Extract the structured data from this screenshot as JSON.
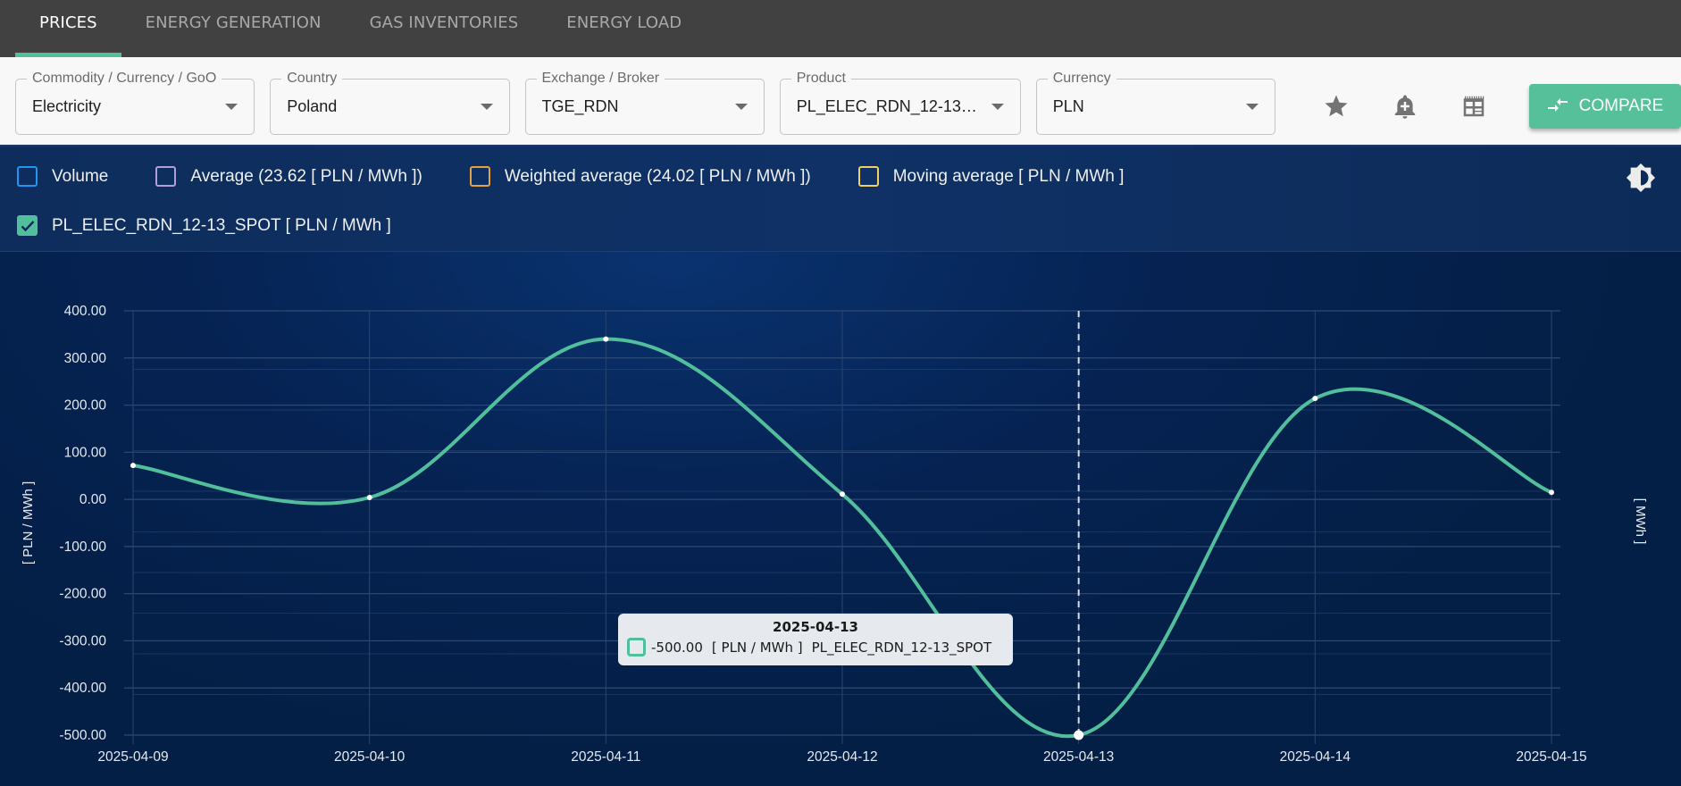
{
  "nav": {
    "tabs": [
      {
        "label": "PRICES",
        "active": true
      },
      {
        "label": "ENERGY GENERATION",
        "active": false
      },
      {
        "label": "GAS INVENTORIES",
        "active": false
      },
      {
        "label": "ENERGY LOAD",
        "active": false
      }
    ]
  },
  "filters": {
    "commodity": {
      "label": "Commodity / Currency / GoO",
      "value": "Electricity"
    },
    "country": {
      "label": "Country",
      "value": "Poland"
    },
    "exchange": {
      "label": "Exchange / Broker",
      "value": "TGE_RDN"
    },
    "product": {
      "label": "Product",
      "value": "PL_ELEC_RDN_12-13_S..."
    },
    "currency": {
      "label": "Currency",
      "value": "PLN"
    }
  },
  "actions": {
    "favorite_icon": "star-icon",
    "alert_icon": "bell-plus-icon",
    "table_icon": "table-layout-icon",
    "compare_label": "COMPARE"
  },
  "legend": {
    "items": [
      {
        "label": "Volume",
        "color": "#2196f3",
        "checked": false
      },
      {
        "label": "Average (23.62 [ PLN / MWh ])",
        "color": "#b39ddb",
        "checked": false
      },
      {
        "label": "Weighted average (24.02 [ PLN / MWh ])",
        "color": "#e6a23c",
        "checked": false
      },
      {
        "label": "Moving average [ PLN / MWh ]",
        "color": "#f0d060",
        "checked": false
      },
      {
        "label": "PL_ELEC_RDN_12-13_SPOT [ PLN / MWh ]",
        "color": "#52bf9c",
        "checked": true
      }
    ],
    "theme_toggle_icon": "brightness-icon"
  },
  "tooltip": {
    "date": "2025-04-13",
    "value": "-500.00",
    "unit": "[ PLN / MWh ]",
    "series": "PL_ELEC_RDN_12-13_SPOT"
  },
  "chart_data": {
    "type": "line",
    "title": "",
    "xlabel": "",
    "ylabel": "[ PLN / MWh ]",
    "y2label": "[ MWh ]",
    "ylim": [
      -500,
      400
    ],
    "yticks": [
      "400.00",
      "300.00",
      "200.00",
      "100.00",
      "0.00",
      "-100.00",
      "-200.00",
      "-300.00",
      "-400.00",
      "-500.00"
    ],
    "x": [
      "2025-04-09",
      "2025-04-10",
      "2025-04-11",
      "2025-04-12",
      "2025-04-13",
      "2025-04-14",
      "2025-04-15"
    ],
    "series": [
      {
        "name": "PL_ELEC_RDN_12-13_SPOT",
        "color": "#52bf9c",
        "values": [
          72,
          4,
          340,
          11,
          -500,
          214,
          15
        ]
      }
    ],
    "average": 23.62,
    "weighted_average": 24.02,
    "highlighted_x": "2025-04-13",
    "grid": true
  }
}
